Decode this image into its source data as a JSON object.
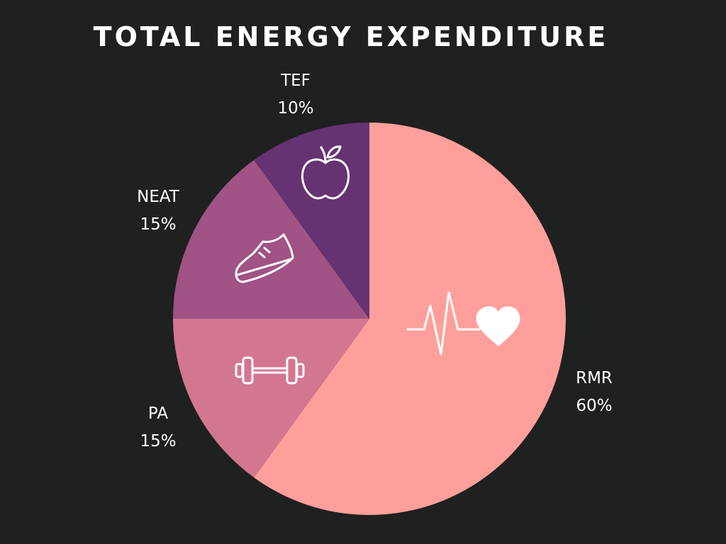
{
  "chart_data": {
    "type": "pie",
    "title": "TOTAL ENERGY EXPENDITURE",
    "slices": [
      {
        "name": "RMR",
        "value": 60,
        "value_label": "60%",
        "color": "#fe9f9b",
        "icon": "heartbeat-icon"
      },
      {
        "name": "PA",
        "value": 15,
        "value_label": "15%",
        "color": "#d37791",
        "icon": "dumbbell-icon"
      },
      {
        "name": "NEAT",
        "value": 15,
        "value_label": "15%",
        "color": "#a05384",
        "icon": "sneaker-icon"
      },
      {
        "name": "TEF",
        "value": 10,
        "value_label": "10%",
        "color": "#653372",
        "icon": "apple-icon"
      }
    ],
    "start_angle": "12 o'clock",
    "direction": "clockwise",
    "legend": "none"
  },
  "colors": {
    "background": "#1f2020",
    "text": "#ffffff"
  }
}
